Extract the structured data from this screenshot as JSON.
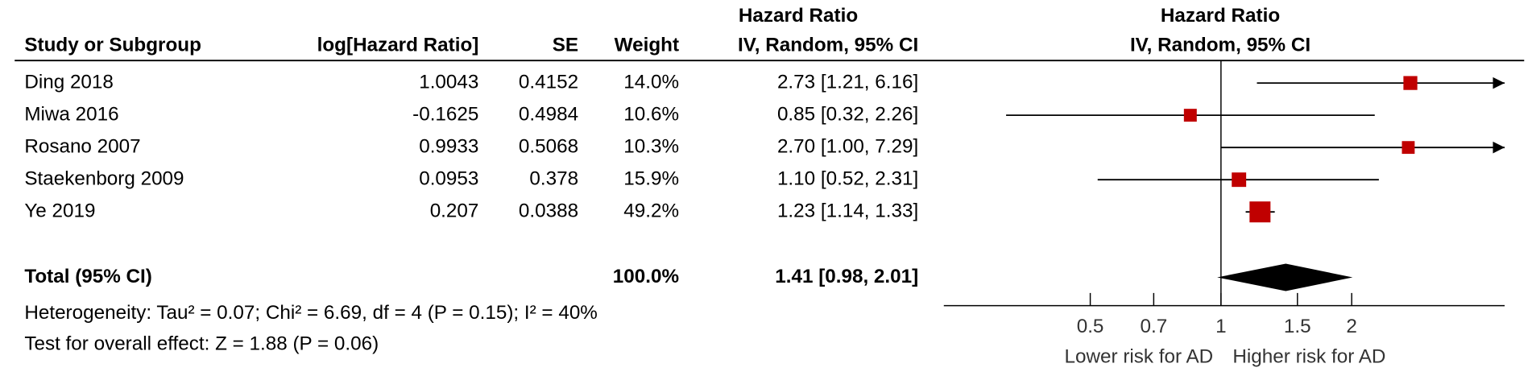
{
  "chart_data": {
    "type": "forest",
    "column_headers": {
      "study": "Study or Subgroup",
      "log_hr": "log[Hazard Ratio]",
      "se": "SE",
      "weight": "Weight",
      "hr_group": "Hazard Ratio",
      "hr_method": "IV, Random, 95% CI"
    },
    "plot_title": "Hazard Ratio",
    "plot_subtitle": "IV, Random, 95% CI",
    "categories": [
      "Ding 2018",
      "Miwa 2016",
      "Rosano 2007",
      "Staekenborg 2009",
      "Ye 2019"
    ],
    "log_hr": [
      1.0043,
      -0.1625,
      0.9933,
      0.0953,
      0.207
    ],
    "se": [
      0.4152,
      0.4984,
      0.5068,
      0.378,
      0.0388
    ],
    "weight": {
      "values": [
        14.0,
        10.6,
        10.3,
        15.9,
        49.2
      ],
      "value_labels": [
        "14.0%",
        "10.6%",
        "10.3%",
        "15.9%",
        "49.2%"
      ]
    },
    "estimates": {
      "color": "#c00000",
      "values": [
        2.73,
        0.85,
        2.7,
        1.1,
        1.23
      ],
      "ci_low": [
        1.21,
        0.32,
        1.0,
        0.52,
        1.14
      ],
      "ci_high": [
        6.16,
        2.26,
        7.29,
        2.31,
        1.33
      ],
      "value_labels": [
        "2.73 [1.21, 6.16]",
        "0.85 [0.32, 2.26]",
        "2.70 [1.00, 7.29]",
        "1.10 [0.52, 2.31]",
        "1.23 [1.14, 1.33]"
      ]
    },
    "total": {
      "label": "Total (95% CI)",
      "weight": 100.0,
      "weight_label": "100.0%",
      "value": 1.41,
      "ci_low": 0.98,
      "ci_high": 2.01,
      "value_label": "1.41 [0.98, 2.01]",
      "color": "#000000"
    },
    "heterogeneity": "Heterogeneity: Tau² = 0.07; Chi² = 6.69, df = 4 (P = 0.15); I² = 40%",
    "overall_effect": "Test for overall effect: Z = 1.88 (P = 0.06)",
    "xscale": "log",
    "xlim": [
      0.23,
      4.5
    ],
    "xticks": [
      0.5,
      0.7,
      1,
      1.5,
      2
    ],
    "reference_line": 1,
    "x_labels": [
      "Lower risk for AD",
      "Higher risk for AD"
    ]
  }
}
